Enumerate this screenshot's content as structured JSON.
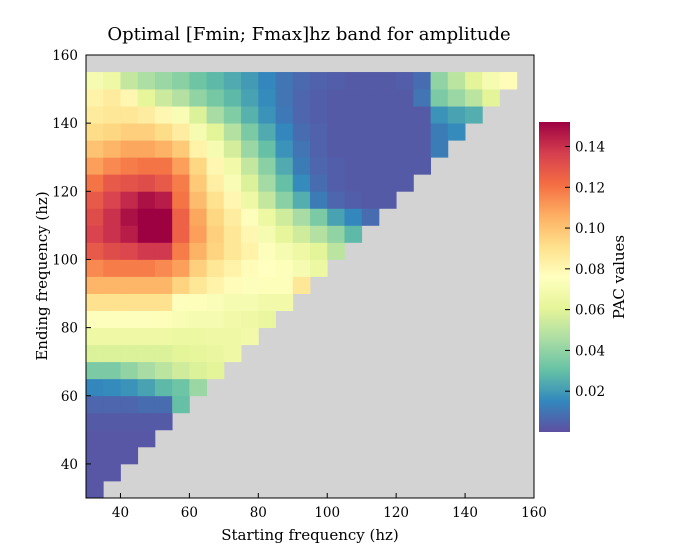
{
  "chart_data": {
    "type": "heatmap",
    "title": "Optimal [Fmin; Fmax]hz band for amplitude",
    "xlabel": "Starting frequency (hz)",
    "ylabel": "Ending frequency (hz)",
    "xlim": [
      30,
      160
    ],
    "ylim": [
      30,
      160
    ],
    "xticks": [
      "40",
      "60",
      "80",
      "100",
      "120",
      "140",
      "160"
    ],
    "yticks": [
      "40",
      "60",
      "80",
      "100",
      "120",
      "140",
      "160"
    ],
    "cell_width_hz": 5,
    "cell_height_hz": 5,
    "missing_color": "#d3d3d3",
    "colormap": "Spectral_r",
    "colorbar": {
      "label": "PAC values",
      "min": 0.0,
      "max": 0.152,
      "ticks": [
        "0.02",
        "0.04",
        "0.06",
        "0.08",
        "0.10",
        "0.12",
        "0.14"
      ]
    },
    "y_rows": [
      35,
      40,
      45,
      50,
      55,
      60,
      65,
      70,
      75,
      80,
      85,
      90,
      95,
      100,
      105,
      110,
      115,
      120,
      125,
      130,
      135,
      140,
      145,
      150,
      155
    ],
    "x_start": 30,
    "rows": [
      [
        0.002
      ],
      [
        0.002,
        0.002
      ],
      [
        0.002,
        0.002,
        0.002
      ],
      [
        0.002,
        0.002,
        0.002,
        0.002
      ],
      [
        0.003,
        0.003,
        0.003,
        0.003,
        0.003
      ],
      [
        0.006,
        0.006,
        0.006,
        0.008,
        0.008,
        0.03
      ],
      [
        0.015,
        0.016,
        0.018,
        0.022,
        0.028,
        0.032,
        0.042
      ],
      [
        0.035,
        0.035,
        0.04,
        0.045,
        0.05,
        0.055,
        0.058,
        0.06
      ],
      [
        0.058,
        0.058,
        0.058,
        0.058,
        0.058,
        0.06,
        0.062,
        0.064,
        0.066
      ],
      [
        0.066,
        0.066,
        0.066,
        0.066,
        0.066,
        0.065,
        0.065,
        0.066,
        0.066,
        0.068
      ],
      [
        0.075,
        0.075,
        0.075,
        0.075,
        0.074,
        0.072,
        0.07,
        0.07,
        0.068,
        0.066,
        0.064
      ],
      [
        0.09,
        0.09,
        0.09,
        0.09,
        0.09,
        0.075,
        0.074,
        0.073,
        0.07,
        0.07,
        0.068,
        0.068
      ],
      [
        0.104,
        0.104,
        0.104,
        0.104,
        0.104,
        0.095,
        0.088,
        0.082,
        0.078,
        0.075,
        0.074,
        0.074,
        0.088
      ],
      [
        0.115,
        0.118,
        0.118,
        0.118,
        0.115,
        0.11,
        0.096,
        0.088,
        0.082,
        0.078,
        0.076,
        0.074,
        0.07,
        0.065
      ],
      [
        0.128,
        0.132,
        0.134,
        0.138,
        0.138,
        0.118,
        0.105,
        0.095,
        0.088,
        0.082,
        0.075,
        0.07,
        0.066,
        0.06,
        0.05
      ],
      [
        0.135,
        0.14,
        0.145,
        0.152,
        0.152,
        0.125,
        0.11,
        0.096,
        0.088,
        0.08,
        0.07,
        0.062,
        0.055,
        0.048,
        0.04,
        0.028
      ],
      [
        0.132,
        0.14,
        0.148,
        0.152,
        0.152,
        0.125,
        0.108,
        0.094,
        0.085,
        0.075,
        0.065,
        0.055,
        0.045,
        0.035,
        0.022,
        0.015,
        0.008
      ],
      [
        0.128,
        0.135,
        0.142,
        0.148,
        0.145,
        0.12,
        0.102,
        0.09,
        0.08,
        0.066,
        0.052,
        0.038,
        0.025,
        0.012,
        0.006,
        0.004,
        0.003,
        0.003
      ],
      [
        0.12,
        0.128,
        0.13,
        0.132,
        0.128,
        0.118,
        0.098,
        0.084,
        0.072,
        0.058,
        0.044,
        0.03,
        0.016,
        0.008,
        0.004,
        0.003,
        0.003,
        0.003,
        0.003
      ],
      [
        0.11,
        0.115,
        0.118,
        0.12,
        0.12,
        0.11,
        0.094,
        0.08,
        0.068,
        0.052,
        0.038,
        0.024,
        0.012,
        0.006,
        0.004,
        0.003,
        0.003,
        0.003,
        0.003,
        0.003
      ],
      [
        0.1,
        0.104,
        0.108,
        0.108,
        0.105,
        0.098,
        0.082,
        0.07,
        0.056,
        0.042,
        0.03,
        0.018,
        0.01,
        0.005,
        0.003,
        0.003,
        0.003,
        0.003,
        0.003,
        0.003,
        0.012
      ],
      [
        0.092,
        0.094,
        0.096,
        0.096,
        0.092,
        0.085,
        0.07,
        0.06,
        0.048,
        0.035,
        0.024,
        0.015,
        0.008,
        0.005,
        0.003,
        0.003,
        0.003,
        0.003,
        0.003,
        0.003,
        0.012,
        0.016
      ],
      [
        0.086,
        0.088,
        0.088,
        0.085,
        0.08,
        0.072,
        0.058,
        0.045,
        0.036,
        0.026,
        0.018,
        0.011,
        0.006,
        0.004,
        0.003,
        0.003,
        0.003,
        0.003,
        0.003,
        0.003,
        0.018,
        0.022,
        0.025
      ],
      [
        0.082,
        0.086,
        0.08,
        0.062,
        0.054,
        0.048,
        0.04,
        0.034,
        0.028,
        0.022,
        0.016,
        0.01,
        0.006,
        0.004,
        0.003,
        0.003,
        0.003,
        0.003,
        0.003,
        0.01,
        0.035,
        0.042,
        0.05,
        0.06
      ],
      [
        0.07,
        0.066,
        0.052,
        0.046,
        0.042,
        0.038,
        0.032,
        0.028,
        0.024,
        0.02,
        0.015,
        0.01,
        0.007,
        0.005,
        0.004,
        0.003,
        0.003,
        0.003,
        0.004,
        0.008,
        0.04,
        0.05,
        0.06,
        0.07,
        0.078
      ]
    ]
  }
}
